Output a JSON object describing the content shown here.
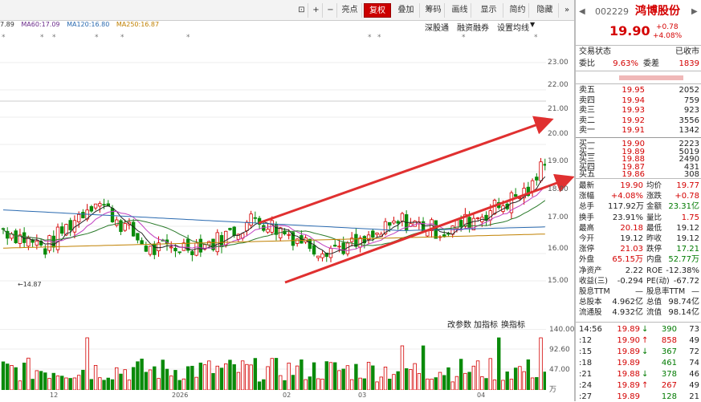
{
  "toolbar": {
    "buttons": [
      "亮点",
      "复权",
      "叠加",
      "筹码",
      "画线",
      "显示",
      "简约",
      "隐藏"
    ]
  },
  "ma_legend": [
    "7.89",
    "MA60:17.09",
    "MA120:16.80",
    "MA250:16.87"
  ],
  "chart_links": [
    "深股通",
    "融资融券",
    "设置均线"
  ],
  "price_axis": [
    "23.00",
    "22.00",
    "21.00",
    "20.00",
    "19.00",
    "18.00",
    "17.00",
    "16.00",
    "15.00"
  ],
  "low_marker": "14.87",
  "volume_links": [
    "改参数",
    "加指标",
    "换指标"
  ],
  "volume_axis": [
    "140.00",
    "92.60",
    "47.00",
    "万"
  ],
  "time_axis": [
    "12",
    "2026",
    "02",
    "03",
    "04"
  ],
  "colors": {
    "up": "#d40000",
    "down": "#0a8a0a",
    "channel": "#e03030"
  },
  "stock": {
    "code": "002229",
    "name": "鸿博股份",
    "price": "19.90",
    "change": "+0.78",
    "change_pct": "+4.08%",
    "status_label": "交易状态",
    "status_value": "已收市",
    "webi_label": "委比",
    "webi_value": "9.63%",
    "weicha_label": "委差",
    "weicha_value": "1839"
  },
  "asks": [
    {
      "label": "卖五",
      "price": "19.95",
      "vol": "2052"
    },
    {
      "label": "卖四",
      "price": "19.94",
      "vol": "759"
    },
    {
      "label": "卖三",
      "price": "19.93",
      "vol": "923"
    },
    {
      "label": "卖二",
      "price": "19.92",
      "vol": "3556"
    },
    {
      "label": "卖一",
      "price": "19.91",
      "vol": "1342"
    }
  ],
  "bids": [
    {
      "label": "买一",
      "price": "19.90",
      "vol": "2223"
    },
    {
      "label": "买二",
      "price": "19.89",
      "vol": "5019"
    },
    {
      "label": "买三",
      "price": "19.88",
      "vol": "2490"
    },
    {
      "label": "买四",
      "price": "19.87",
      "vol": "431"
    },
    {
      "label": "买五",
      "price": "19.86",
      "vol": "308"
    }
  ],
  "stats": [
    {
      "l1": "最新",
      "v1": "19.90",
      "c1": "red",
      "l2": "均价",
      "v2": "19.77",
      "c2": "red"
    },
    {
      "l1": "涨幅",
      "v1": "+4.08%",
      "c1": "red",
      "l2": "涨跌",
      "v2": "+0.78",
      "c2": "red"
    },
    {
      "l1": "总手",
      "v1": "117.92万",
      "c1": "",
      "l2": "金额",
      "v2": "23.31亿",
      "c2": "green"
    },
    {
      "l1": "换手",
      "v1": "23.91%",
      "c1": "",
      "l2": "量比",
      "v2": "1.75",
      "c2": "red"
    },
    {
      "l1": "最高",
      "v1": "20.18",
      "c1": "red",
      "l2": "最低",
      "v2": "19.12",
      "c2": ""
    },
    {
      "l1": "今开",
      "v1": "19.12",
      "c1": "",
      "l2": "昨收",
      "v2": "19.12",
      "c2": ""
    },
    {
      "l1": "涨停",
      "v1": "21.03",
      "c1": "red",
      "l2": "跌停",
      "v2": "17.21",
      "c2": "green"
    },
    {
      "l1": "外盘",
      "v1": "65.15万",
      "c1": "red",
      "l2": "内盘",
      "v2": "52.77万",
      "c2": "green"
    },
    {
      "l1": "净资产",
      "v1": "2.22",
      "c1": "",
      "l2": "ROE",
      "v2": "-12.38%",
      "c2": ""
    },
    {
      "l1": "收益(三)",
      "v1": "-0.294",
      "c1": "",
      "l2": "PE(动)",
      "v2": "-67.72",
      "c2": ""
    },
    {
      "l1": "股息TTM",
      "v1": "—",
      "c1": "",
      "l2": "股息率TTM",
      "v2": "—",
      "c2": ""
    },
    {
      "l1": "总股本",
      "v1": "4.962亿",
      "c1": "",
      "l2": "总值",
      "v2": "98.74亿",
      "c2": ""
    },
    {
      "l1": "流通股",
      "v1": "4.932亿",
      "c1": "",
      "l2": "流值",
      "v2": "98.14亿",
      "c2": ""
    }
  ],
  "ticks": [
    {
      "time": "14:56",
      "price": "19.89",
      "dir": "down",
      "vol": "390",
      "n": "73"
    },
    {
      "time": ":12",
      "price": "19.90",
      "dir": "up",
      "vol": "858",
      "n": "49"
    },
    {
      "time": ":15",
      "price": "19.89",
      "dir": "down",
      "vol": "367",
      "n": "72"
    },
    {
      "time": ":18",
      "price": "19.89",
      "dir": "",
      "vol": "461",
      "n": "74"
    },
    {
      "time": ":21",
      "price": "19.88",
      "dir": "down",
      "vol": "378",
      "n": "46"
    },
    {
      "time": ":24",
      "price": "19.89",
      "dir": "up",
      "vol": "267",
      "n": "49"
    },
    {
      "time": ":27",
      "price": "19.89",
      "dir": "",
      "vol": "128",
      "n": "21"
    }
  ]
}
